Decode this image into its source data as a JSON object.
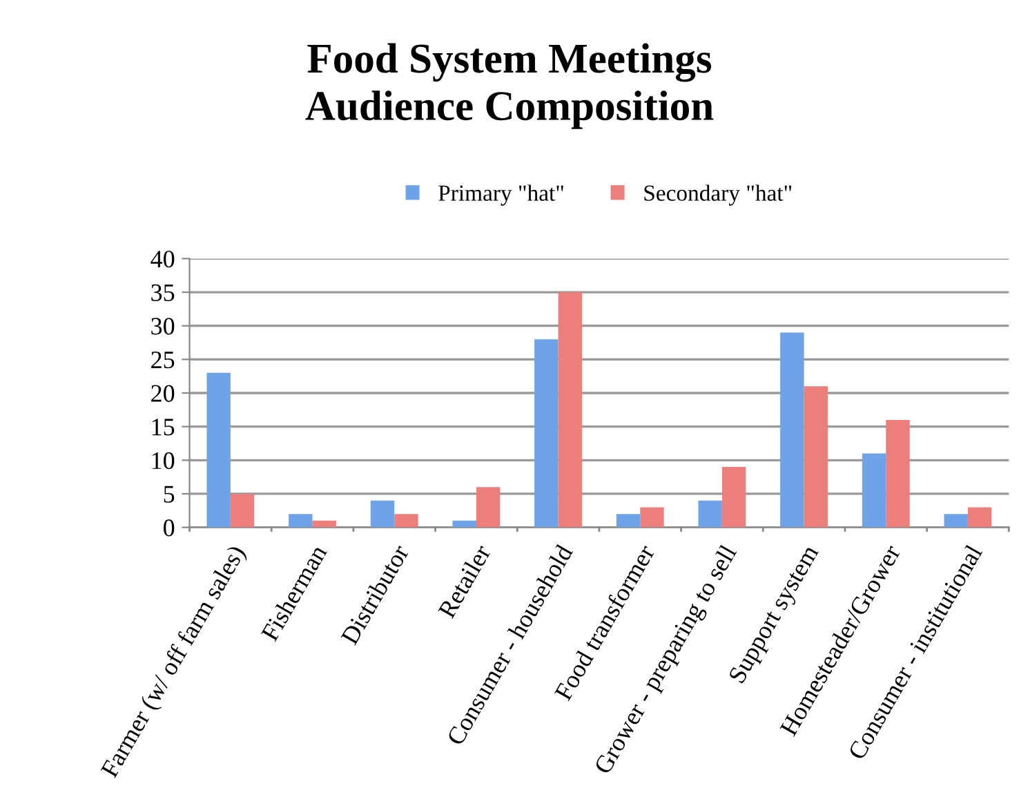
{
  "chart_data": {
    "type": "bar",
    "title": "Food System Meetings\nAudience Composition",
    "categories": [
      "Farmer (w/ off farm sales)",
      "Fisherman",
      "Distributor",
      "Retailer",
      "Consumer - household",
      "Food transformer",
      "Grower - preparing to sell",
      "Support system",
      "Homesteader/Grower",
      "Consumer - institutional"
    ],
    "series": [
      {
        "name": "Primary \"hat\"",
        "color": "#6fa3e8",
        "values": [
          23,
          2,
          4,
          1,
          28,
          2,
          4,
          29,
          11,
          2
        ]
      },
      {
        "name": "Secondary \"hat\"",
        "color": "#ec7f7b",
        "values": [
          5,
          1,
          2,
          6,
          35,
          3,
          9,
          21,
          16,
          3
        ]
      }
    ],
    "ylim": [
      0,
      40
    ],
    "yticks": [
      0,
      5,
      10,
      15,
      20,
      25,
      30,
      35,
      40
    ],
    "grid": "y",
    "legend": "top"
  }
}
